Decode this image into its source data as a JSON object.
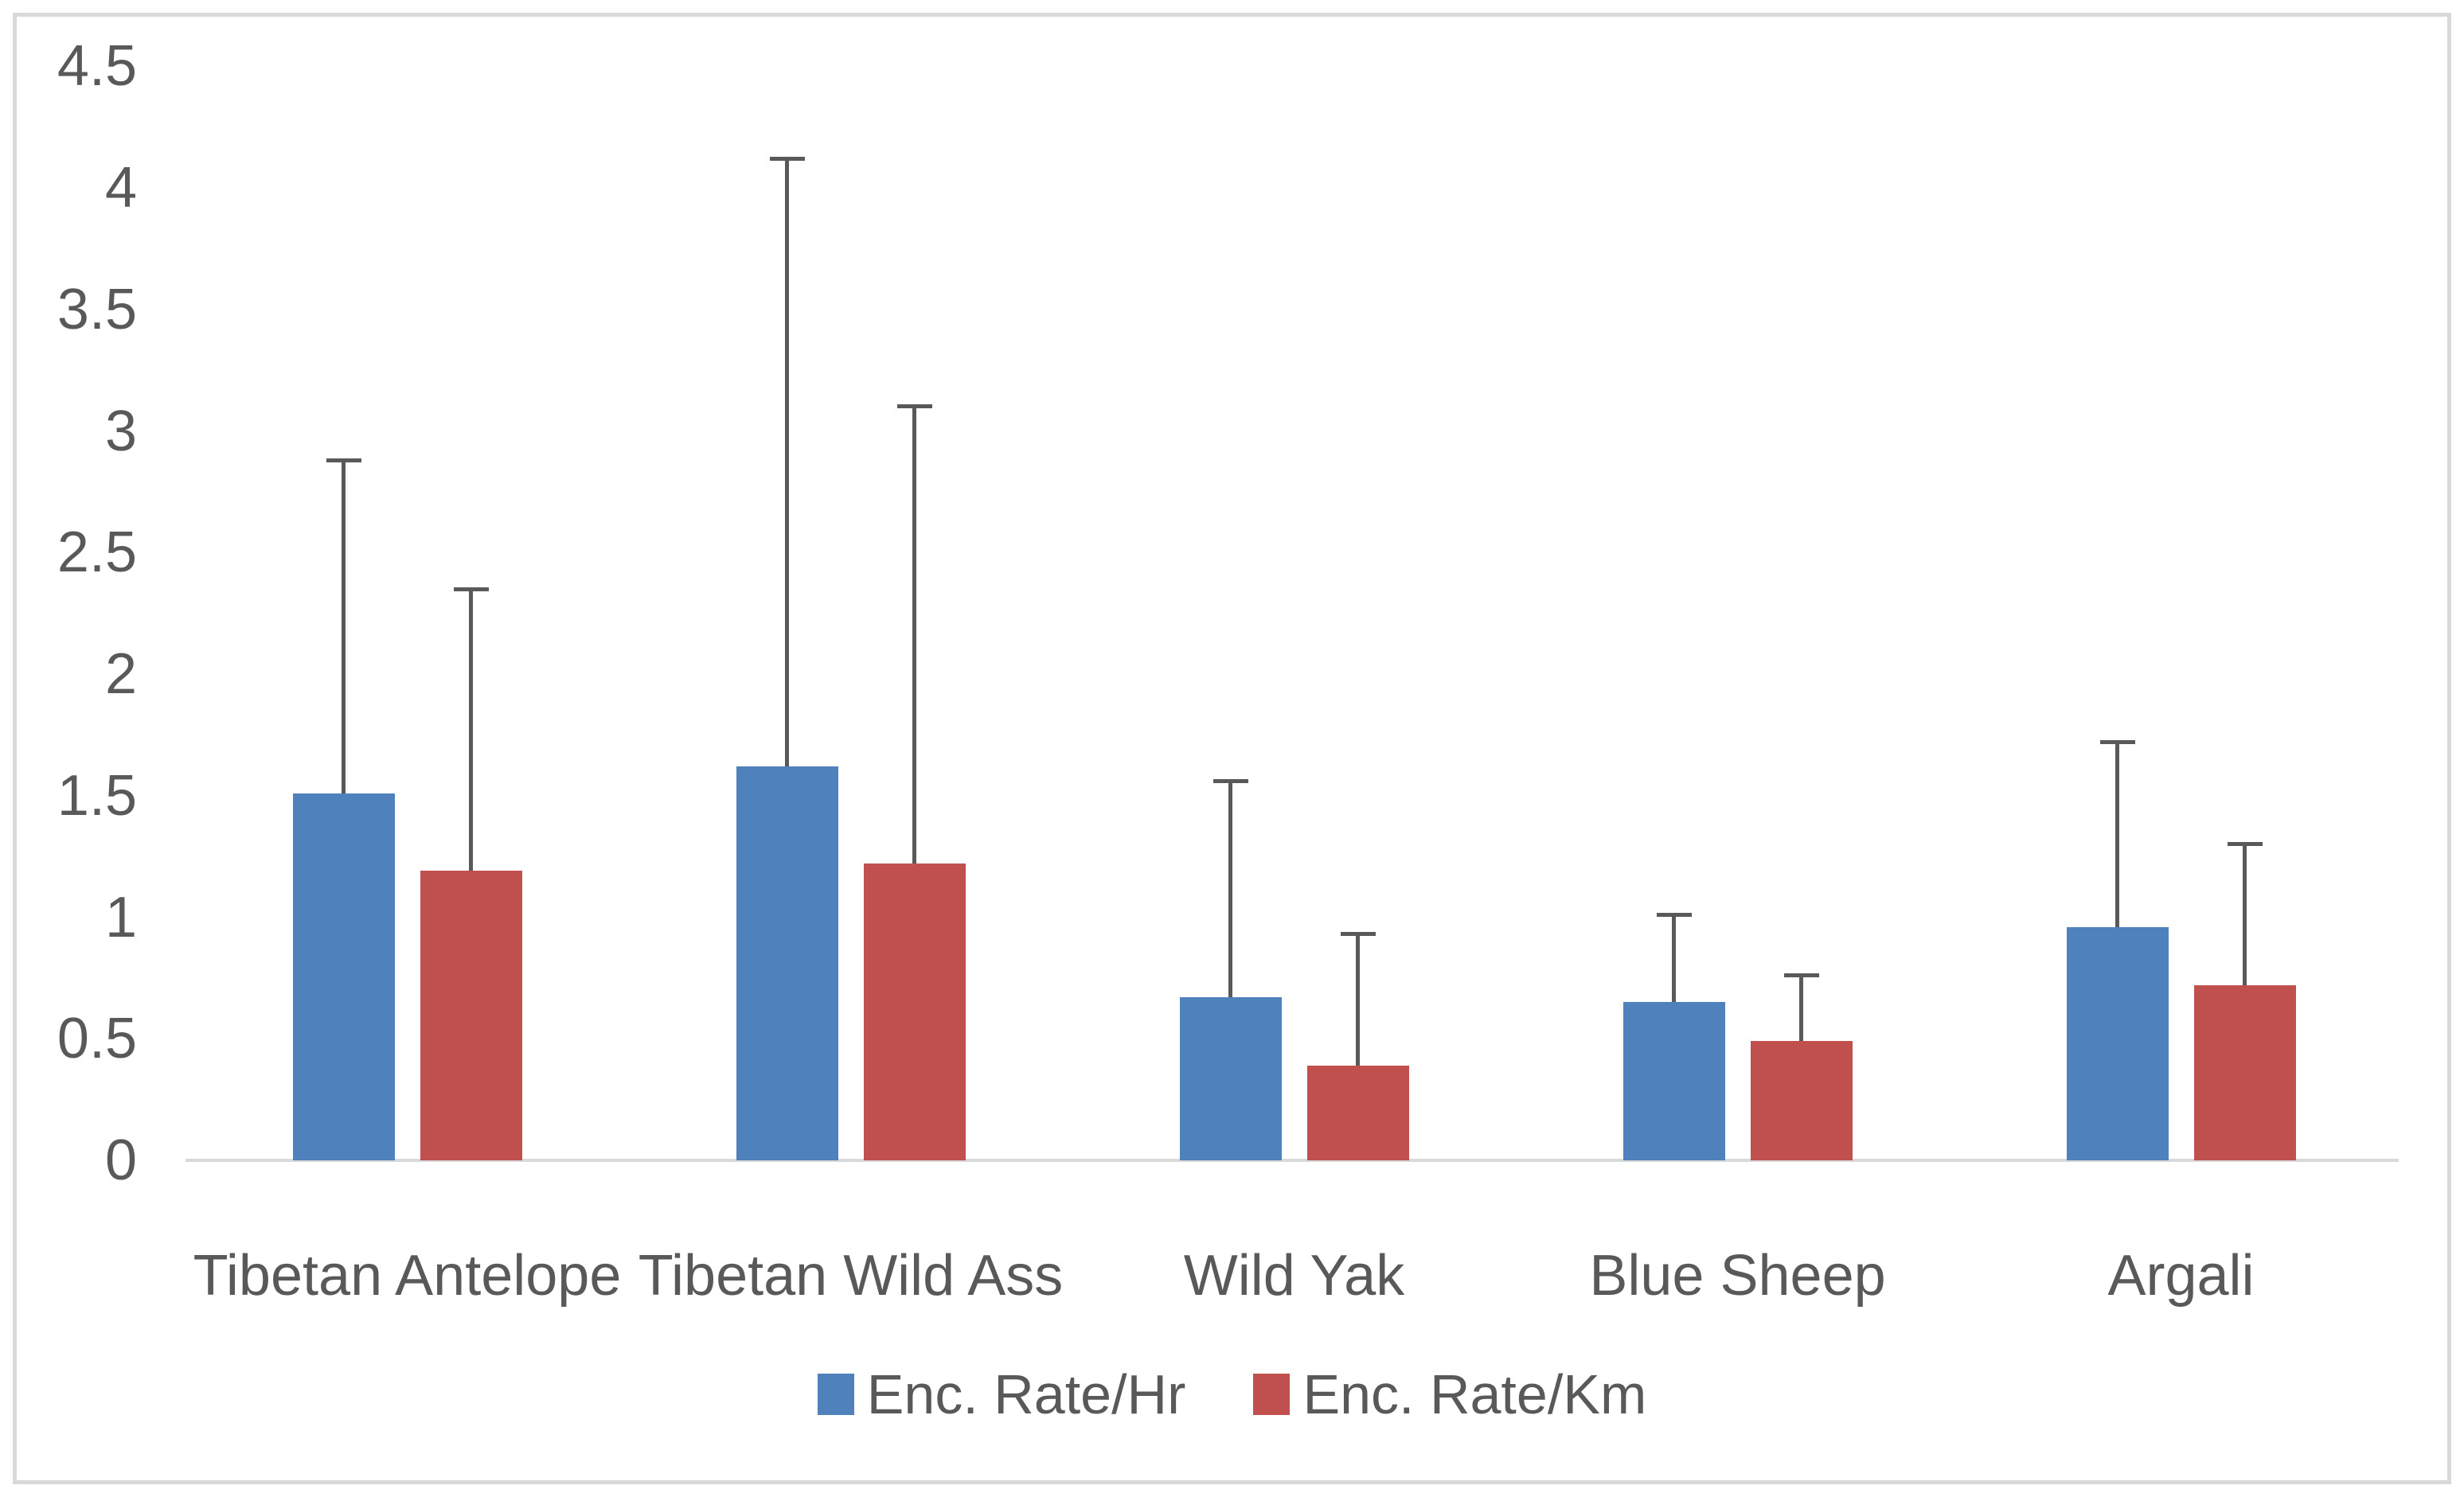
{
  "chart_data": {
    "type": "bar",
    "title": "",
    "categories": [
      "Tibetan Antelope",
      "Tibetan Wild Ass",
      "Wild Yak",
      "Blue Sheep",
      "Argali"
    ],
    "series": [
      {
        "name": "Enc. Rate/Hr",
        "color": "#4f81bd",
        "values": [
          1.51,
          1.62,
          0.67,
          0.65,
          0.96
        ],
        "error_plus": [
          1.37,
          2.5,
          0.89,
          0.36,
          0.76
        ]
      },
      {
        "name": "Enc. Rate/Km",
        "color": "#c0504d",
        "values": [
          1.19,
          1.22,
          0.39,
          0.49,
          0.72
        ],
        "error_plus": [
          1.16,
          1.88,
          0.54,
          0.27,
          0.58
        ]
      }
    ],
    "ylim": [
      0,
      4.5
    ],
    "ytick_step": 0.5,
    "ytick_labels": [
      "0",
      "0.5",
      "1",
      "1.5",
      "2",
      "2.5",
      "3",
      "3.5",
      "4",
      "4.5"
    ],
    "xlabel": "",
    "ylabel": "",
    "grid": "off",
    "legend_position": "bottom-center",
    "colors": {
      "error_bar": "#595959",
      "axis_line": "#d9d9d9",
      "text": "#595959",
      "frame_border": "#d9d9d9",
      "background": "#ffffff"
    }
  }
}
